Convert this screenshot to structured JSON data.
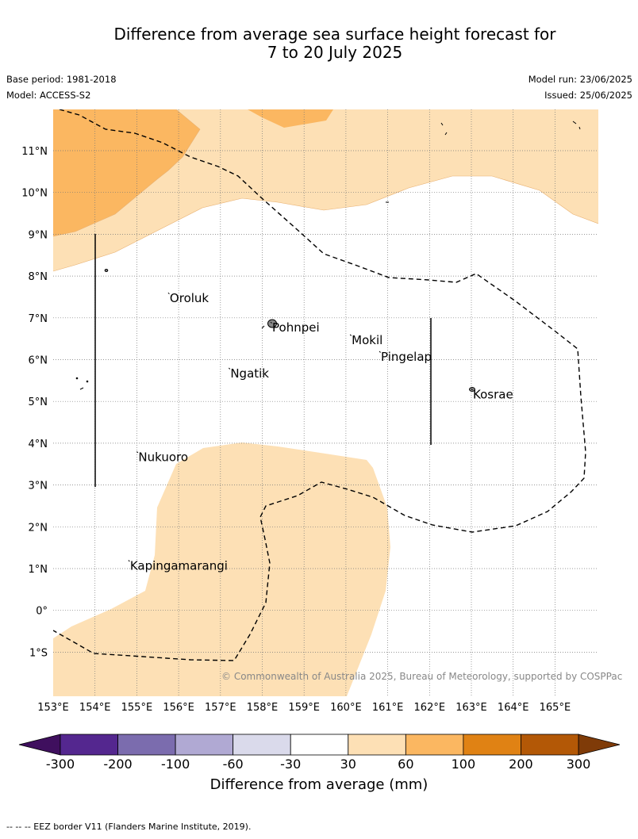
{
  "title_line1": "Difference from average sea surface height forecast for",
  "title_line2": "7 to 20 July 2025",
  "base_period": "Base period: 1981-2018",
  "model": "Model: ACCESS-S2",
  "model_run": "Model run: 23/06/2025",
  "issued": "Issued: 25/06/2025",
  "copyright": "© Commonwealth of Australia 2025, Bureau of Meteorology, supported by COSPPac",
  "footer": "--  --  -- EEZ border V11 (Flanders Marine Institute, 2019).",
  "map": {
    "lon_labels": [
      "153°E",
      "154°E",
      "155°E",
      "156°E",
      "157°E",
      "158°E",
      "159°E",
      "160°E",
      "161°E",
      "162°E",
      "163°E",
      "164°E",
      "165°E"
    ],
    "lat_labels": [
      "11°N",
      "10°N",
      "9°N",
      "8°N",
      "7°N",
      "6°N",
      "5°N",
      "4°N",
      "3°N",
      "2°N",
      "1°N",
      "0°",
      "1°S"
    ],
    "places": [
      {
        "name": "Oroluk",
        "lon": 155.75,
        "lat": 7.6
      },
      {
        "name": "Pohnpei",
        "lon": 158.2,
        "lat": 6.9
      },
      {
        "name": "Mokil",
        "lon": 160.1,
        "lat": 6.6
      },
      {
        "name": "Pingelap",
        "lon": 160.8,
        "lat": 6.2
      },
      {
        "name": "Ngatik",
        "lon": 157.2,
        "lat": 5.8
      },
      {
        "name": "Kosrae",
        "lon": 163.0,
        "lat": 5.3
      },
      {
        "name": "Nukuoro",
        "lon": 155.0,
        "lat": 3.8
      },
      {
        "name": "Kapingamarangi",
        "lon": 154.8,
        "lat": 1.2
      }
    ]
  },
  "colorbar": {
    "label": "Difference from average (mm)",
    "ticks": [
      "-300",
      "-200",
      "-100",
      "-60",
      "-30",
      "30",
      "60",
      "100",
      "200",
      "300"
    ],
    "colors": {
      "below": "#3f0f5e",
      "bins": [
        "#54278f",
        "#7b6cae",
        "#b0a9d3",
        "#dadaeb",
        "#ffffff",
        "#fde0b5",
        "#fbb761",
        "#e08214",
        "#b35806"
      ],
      "above": "#7f3b08"
    }
  }
}
